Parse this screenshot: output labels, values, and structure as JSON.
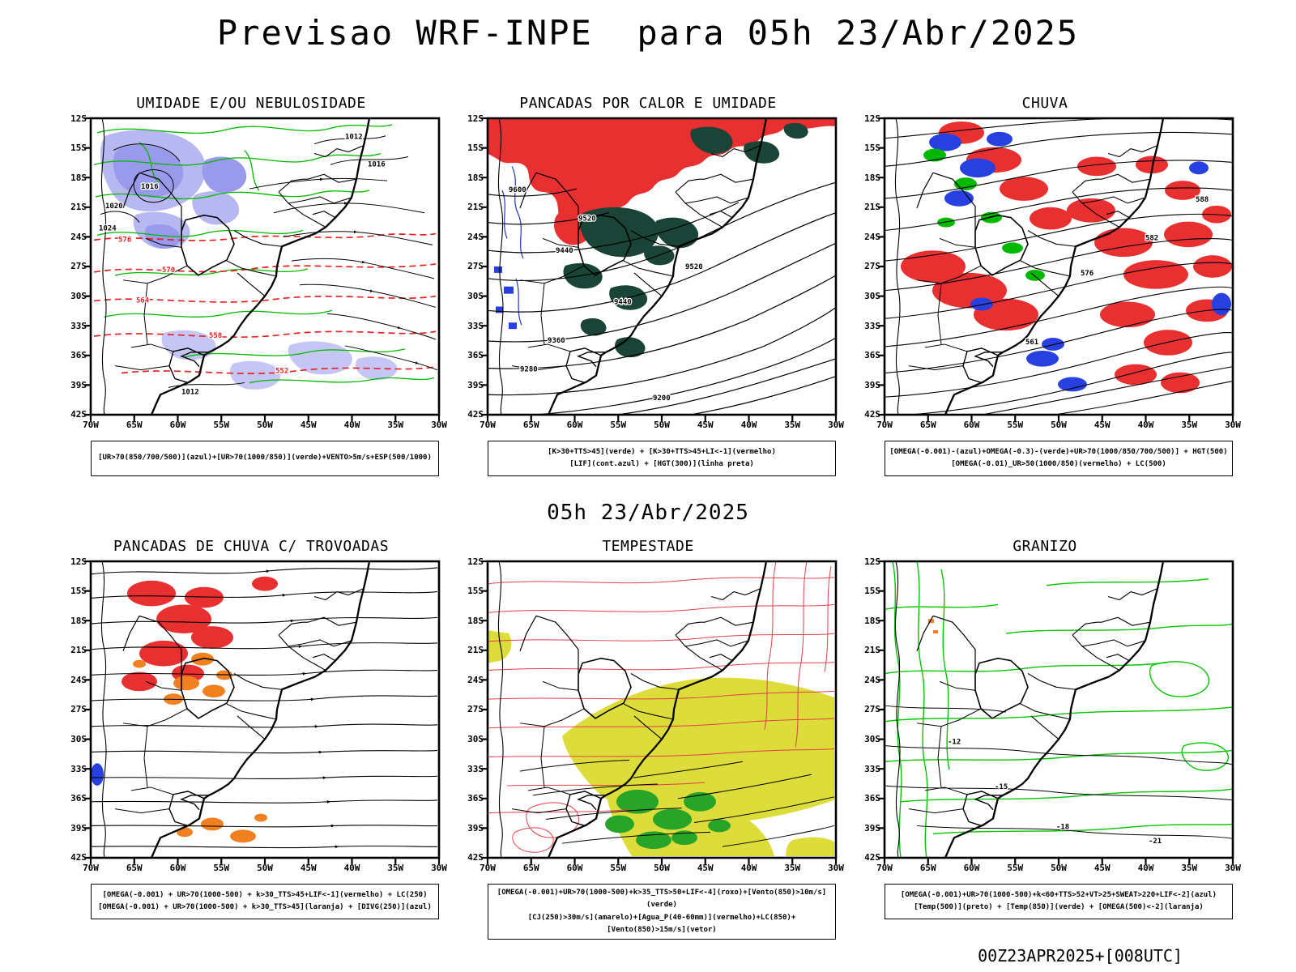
{
  "page": {
    "title": "Previsao WRF-INPE  para 05h 23/Abr/2025",
    "subtitle": "05h 23/Abr/2025",
    "footer": "00Z23APR2025+[008UTC]"
  },
  "axes": {
    "lat_labels": [
      "12S",
      "15S",
      "18S",
      "21S",
      "24S",
      "27S",
      "30S",
      "33S",
      "36S",
      "39S",
      "42S"
    ],
    "lon_labels": [
      "70W",
      "65W",
      "60W",
      "55W",
      "50W",
      "45W",
      "40W",
      "35W",
      "30W"
    ]
  },
  "panels": [
    {
      "title": "UMIDADE E/OU NEBULOSIDADE",
      "caption_lines": [
        "[UR>70(850/700/500)](azul)+[UR>70(1000/850)](verde)+VENTO>5m/s+ESP(500/1000)"
      ],
      "labels": [
        "576",
        "570",
        "564",
        "558",
        "552",
        "1016",
        "1020",
        "1024",
        "1012",
        "1016",
        "1012"
      ]
    },
    {
      "title": "PANCADAS POR CALOR E UMIDADE",
      "caption_lines": [
        "[K>30+TTS>45](verde) + [K>30+TTS>45+LI<-1](vermelho)",
        "[LIF](cont.azul) + [HGT(300)](linha preta)"
      ],
      "labels": [
        "9600",
        "9520",
        "9440",
        "9520",
        "9440",
        "9360",
        "9280",
        "9200"
      ]
    },
    {
      "title": "CHUVA",
      "caption_lines": [
        "[OMEGA(-0.001)-(azul)+OMEGA(-0.3)-(verde)+UR>70(1000/850/700/500)] + HGT(500)",
        "[OMEGA(-0.01)_UR>50(1000/850)(vermelho) + LC(500)"
      ],
      "labels": [
        "588",
        "582",
        "576",
        "561"
      ]
    },
    {
      "title": "PANCADAS DE CHUVA C/ TROVOADAS",
      "caption_lines": [
        "[OMEGA(-0.001) + UR>70(1000-500) + k>30_TTS>45+LIF<-1](vermelho) + LC(250)",
        "[OMEGA(-0.001) + UR>70(1000-500) + k>30_TTS>45](laranja) + [DIVG(250)](azul)"
      ],
      "labels": []
    },
    {
      "title": "TEMPESTADE",
      "caption_lines": [
        "[OMEGA(-0.001)+UR>70(1000-500)+k>35_TTS>50+LIF<-4](roxo)+[Vento(850)>10m/s](verde)",
        "[CJ(250)>30m/s](amarelo)+[Agua_P(40-60mm)](vermelho)+LC(850)+[Vento(850)>15m/s](vetor)"
      ],
      "labels": []
    },
    {
      "title": "GRANIZO",
      "caption_lines": [
        "[OMEGA(-0.001)+UR>70(1000-500)+k<60+TTS>52+VT>25+SWEAT>220+LIF<-2](azul)",
        "[Temp(500)](preto) + [Temp(850)](verde) + [OMEGA(500)<-2](laranja)"
      ],
      "labels": [
        "-12",
        "-15",
        "-18",
        "-21"
      ]
    }
  ]
}
